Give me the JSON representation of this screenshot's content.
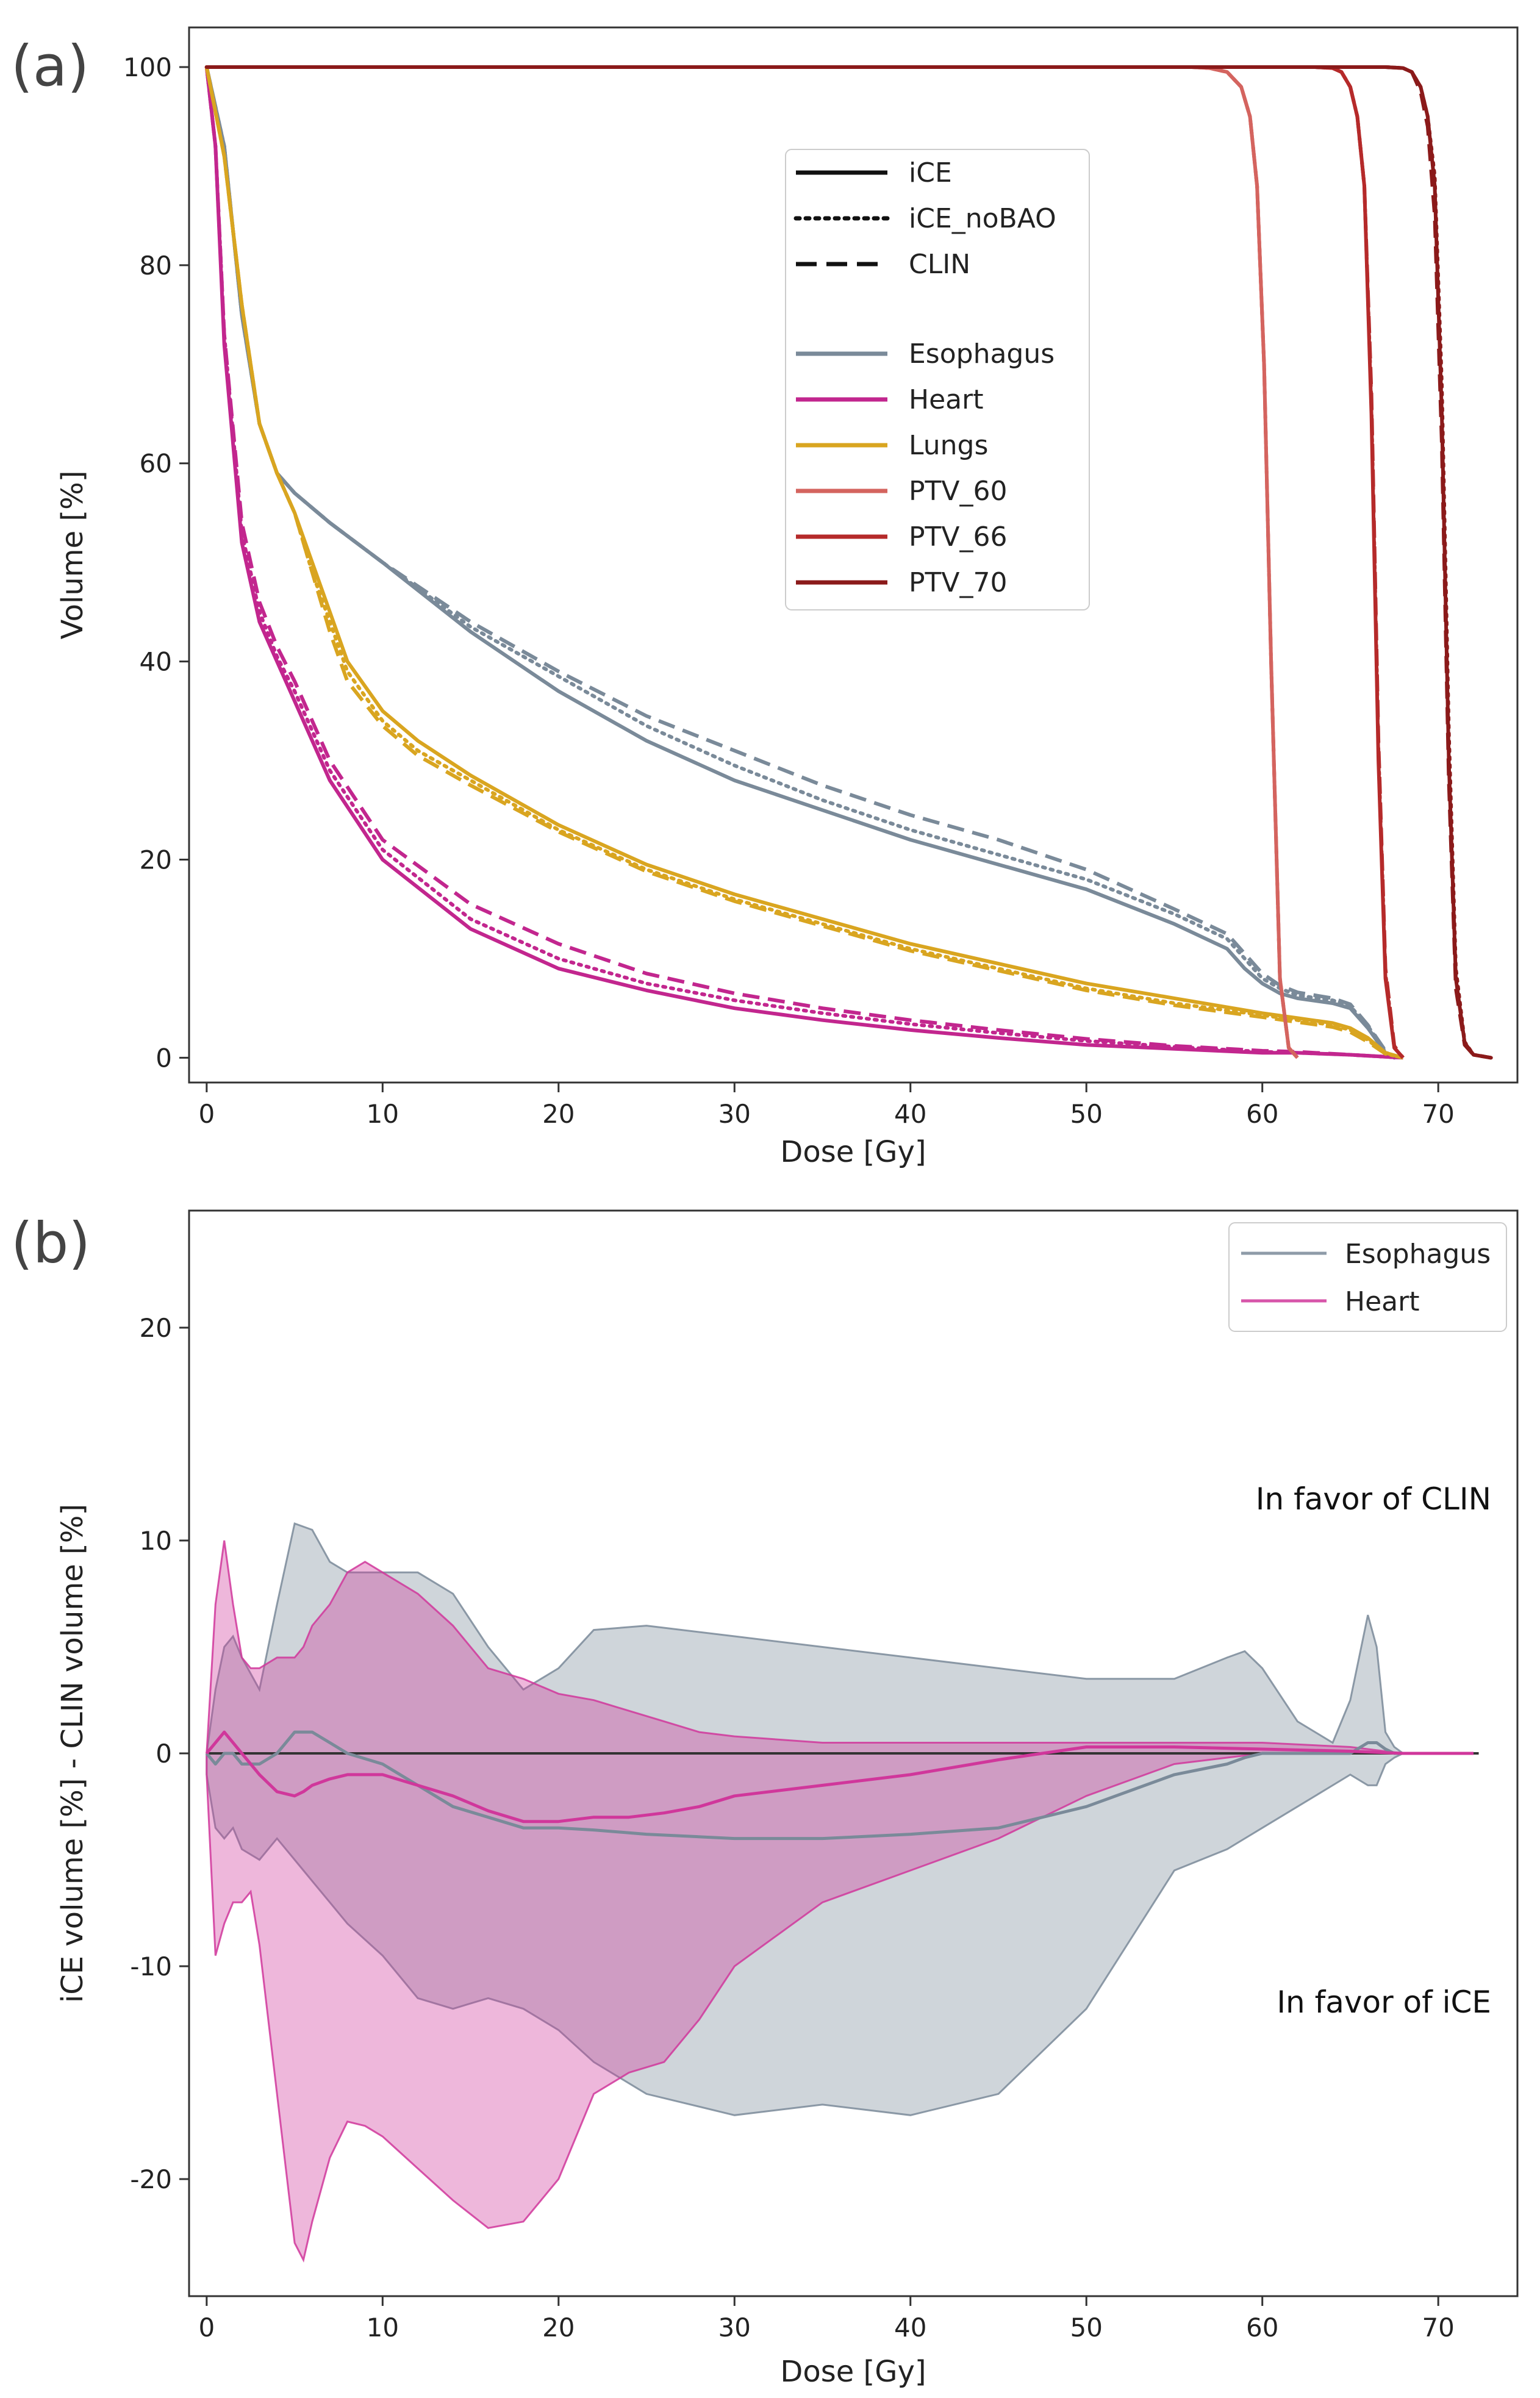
{
  "chart_data": [
    {
      "panel": "(a)",
      "type": "line",
      "xlabel": "Dose [Gy]",
      "ylabel": "Volume [%]",
      "xlim": [
        -1,
        74.5
      ],
      "ylim": [
        -2.5,
        104
      ],
      "xticks": [
        0,
        10,
        20,
        30,
        40,
        50,
        60,
        70
      ],
      "yticks": [
        0,
        20,
        40,
        60,
        80,
        100
      ],
      "legend_styles": [
        {
          "name": "iCE",
          "dash": "solid"
        },
        {
          "name": "iCE_noBAO",
          "dash": "dotted"
        },
        {
          "name": "CLIN",
          "dash": "dashed"
        }
      ],
      "series": [
        {
          "name": "Esophagus",
          "color": "#7a8a99",
          "x": [
            0,
            1,
            2,
            3,
            4,
            5,
            7,
            10,
            15,
            20,
            25,
            30,
            35,
            40,
            45,
            50,
            55,
            58,
            59,
            60,
            61,
            62,
            64,
            65,
            66,
            67,
            67.5
          ],
          "variants": {
            "iCE": [
              100,
              92,
              75,
              64,
              59,
              57,
              54,
              50,
              43,
              37,
              32,
              28,
              25,
              22,
              19.5,
              17,
              13.5,
              11,
              9,
              7.5,
              6.5,
              6,
              5.5,
              5,
              3,
              0.5,
              0
            ],
            "iCE_noBAO": [
              100,
              92,
              75,
              64,
              59,
              57,
              54,
              50,
              43.5,
              38.5,
              33.5,
              29.5,
              26,
              23,
              20.5,
              18,
              14.5,
              12,
              10,
              8,
              7,
              6.3,
              5.8,
              5.2,
              3.2,
              0.6,
              0
            ],
            "CLIN": [
              100,
              92,
              75,
              64,
              59,
              57,
              54,
              50,
              44,
              39,
              34.5,
              31,
              27.5,
              24.5,
              22,
              19,
              15,
              12.5,
              10.5,
              8.5,
              7.3,
              6.6,
              6,
              5.4,
              3.3,
              0.7,
              0
            ]
          }
        },
        {
          "name": "Heart",
          "color": "#c2268e",
          "x": [
            0,
            0.5,
            1,
            2,
            3,
            4,
            5,
            7,
            10,
            15,
            20,
            25,
            30,
            35,
            40,
            45,
            50,
            55,
            60,
            62,
            65,
            67,
            68
          ],
          "variants": {
            "iCE": [
              100,
              92,
              72,
              52,
              44,
              40,
              36,
              28,
              20,
              13,
              9,
              6.8,
              5,
              3.8,
              2.8,
              2,
              1.3,
              0.9,
              0.5,
              0.5,
              0.3,
              0.1,
              0
            ],
            "iCE_noBAO": [
              100,
              92,
              73,
              53,
              45,
              40.5,
              37,
              29,
              21,
              14,
              10,
              7.5,
              5.8,
              4.5,
              3.4,
              2.5,
              1.7,
              1.1,
              0.6,
              0.5,
              0.3,
              0.1,
              0
            ],
            "CLIN": [
              100,
              92,
              73,
              54,
              46,
              41.5,
              38,
              30,
              22,
              15.5,
              11.5,
              8.5,
              6.5,
              5,
              3.8,
              2.8,
              1.9,
              1.2,
              0.7,
              0.6,
              0.3,
              0.1,
              0
            ]
          }
        },
        {
          "name": "Lungs",
          "color": "#d9a520",
          "x": [
            0,
            1,
            2,
            3,
            4,
            5,
            6,
            7,
            8,
            10,
            12,
            15,
            20,
            25,
            30,
            35,
            40,
            45,
            50,
            55,
            60,
            62,
            64,
            65,
            66,
            67,
            68
          ],
          "variants": {
            "iCE": [
              100,
              91,
              76,
              64,
              59,
              55,
              50,
              45,
              40,
              35,
              32,
              28.5,
              23.5,
              19.5,
              16.5,
              14,
              11.5,
              9.5,
              7.5,
              6,
              4.5,
              4,
              3.5,
              3,
              2,
              0.5,
              0
            ],
            "iCE_noBAO": [
              100,
              91,
              76,
              64,
              59,
              55,
              49,
              44,
              39,
              34,
              31,
              28,
              23,
              19,
              16,
              13.5,
              11,
              9,
              7,
              5.5,
              4.3,
              3.8,
              3.3,
              2.8,
              1.8,
              0.4,
              0
            ],
            "CLIN": [
              100,
              91,
              76,
              64,
              59,
              55,
              49,
              43,
              38,
              33.5,
              30.5,
              27.5,
              22.8,
              18.8,
              15.8,
              13.3,
              10.8,
              8.8,
              6.8,
              5.3,
              4.1,
              3.6,
              3.1,
              2.6,
              1.6,
              0.4,
              0
            ]
          }
        },
        {
          "name": "PTV_60",
          "color": "#d4645f",
          "x": [
            0,
            56,
            57,
            58,
            58.8,
            59.3,
            59.7,
            60.1,
            60.5,
            61,
            61.5,
            62
          ],
          "variants": {
            "iCE": [
              100,
              100,
              99.9,
              99.5,
              98,
              95,
              88,
              70,
              40,
              8,
              1,
              0
            ],
            "iCE_noBAO": [
              100,
              100,
              99.9,
              99.5,
              98,
              95,
              88,
              70,
              40,
              8,
              1,
              0
            ],
            "CLIN": [
              100,
              100,
              99.9,
              99.5,
              98,
              95,
              88,
              70,
              40,
              8,
              1,
              0
            ]
          }
        },
        {
          "name": "PTV_66",
          "color": "#b52a2a",
          "x": [
            0,
            63,
            64,
            64.5,
            65,
            65.4,
            65.8,
            66.2,
            66.6,
            67,
            67.5,
            68
          ],
          "variants": {
            "iCE": [
              100,
              100,
              99.9,
              99.5,
              98,
              95,
              88,
              65,
              30,
              8,
              1,
              0
            ],
            "iCE_noBAO": [
              100,
              100,
              99.9,
              99.5,
              98,
              95,
              88,
              66,
              31,
              8.5,
              1,
              0
            ],
            "CLIN": [
              100,
              100,
              99.9,
              99.5,
              98,
              95,
              88,
              67,
              32,
              9,
              1.2,
              0
            ]
          }
        },
        {
          "name": "PTV_70",
          "color": "#8b1a1a",
          "x": [
            0,
            67,
            68,
            68.5,
            69,
            69.4,
            69.8,
            70.2,
            70.6,
            71,
            71.5,
            72,
            73
          ],
          "variants": {
            "iCE": [
              100,
              100,
              99.9,
              99.5,
              98,
              95,
              88,
              65,
              30,
              8,
              1.5,
              0.3,
              0
            ],
            "iCE_noBAO": [
              100,
              100,
              99.9,
              99.5,
              98,
              95,
              89,
              68,
              33,
              9,
              1.6,
              0.3,
              0
            ],
            "CLIN": [
              100,
              100,
              99.9,
              99.5,
              97.5,
              94,
              85,
              62,
              28,
              7,
              1.3,
              0.3,
              0
            ]
          }
        }
      ]
    },
    {
      "panel": "(b)",
      "type": "area",
      "xlabel": "Dose [Gy]",
      "ylabel": "iCE volume [%] - CLIN volume [%]",
      "xlim": [
        -1,
        74.5
      ],
      "ylim": [
        -25.5,
        25.5
      ],
      "xticks": [
        0,
        10,
        20,
        30,
        40,
        50,
        60,
        70
      ],
      "yticks": [
        -20,
        -10,
        0,
        10,
        20
      ],
      "zero_line": true,
      "annotations": [
        "In favor of CLIN",
        "In favor of iCE"
      ],
      "series": [
        {
          "name": "Esophagus",
          "color": "#7a8a99",
          "x": [
            0,
            0.5,
            1,
            1.5,
            2,
            3,
            4,
            5,
            6,
            7,
            8,
            10,
            12,
            14,
            16,
            18,
            20,
            22,
            25,
            30,
            35,
            40,
            45,
            50,
            55,
            58,
            59,
            60,
            62,
            64,
            65,
            66,
            66.5,
            67,
            67.5,
            68,
            72
          ],
          "upper": [
            0,
            3,
            5,
            5.5,
            4.5,
            3,
            7,
            10.8,
            10.5,
            9,
            8.5,
            8.5,
            8.5,
            7.5,
            5,
            3,
            4,
            5.8,
            6,
            5.5,
            5,
            4.5,
            4,
            3.5,
            3.5,
            4.5,
            4.8,
            4,
            1.5,
            0.5,
            2.5,
            6.5,
            5,
            1,
            0.3,
            0,
            0
          ],
          "mean": [
            0,
            -0.5,
            0,
            0,
            -0.5,
            -0.5,
            0,
            1,
            1,
            0.5,
            0,
            -0.5,
            -1.5,
            -2.5,
            -3,
            -3.5,
            -3.5,
            -3.6,
            -3.8,
            -4,
            -4,
            -3.8,
            -3.5,
            -2.5,
            -1,
            -0.5,
            -0.2,
            0,
            0,
            0,
            0,
            0.5,
            0.5,
            0.2,
            0,
            0,
            0
          ],
          "lower": [
            -1,
            -3.5,
            -4,
            -3.5,
            -4.5,
            -5,
            -4,
            -5,
            -6,
            -7,
            -8,
            -9.5,
            -11.5,
            -12,
            -11.5,
            -12,
            -13,
            -14.5,
            -16,
            -17,
            -16.5,
            -17,
            -16,
            -12,
            -5.5,
            -4.5,
            -4,
            -3.5,
            -2.5,
            -1.5,
            -1,
            -1.5,
            -1.5,
            -0.5,
            -0.2,
            0,
            0
          ]
        },
        {
          "name": "Heart",
          "color": "#d0379b",
          "x": [
            0,
            0.5,
            1,
            1.5,
            2,
            2.5,
            3,
            4,
            5,
            5.5,
            6,
            7,
            8,
            9,
            10,
            12,
            14,
            16,
            18,
            20,
            22,
            24,
            26,
            28,
            30,
            35,
            40,
            45,
            50,
            55,
            60,
            65,
            68,
            72
          ],
          "upper": [
            0,
            7,
            10,
            7,
            4.5,
            4,
            4,
            4.5,
            4.5,
            5,
            6,
            7,
            8.5,
            9,
            8.5,
            7.5,
            6,
            4,
            3.5,
            2.8,
            2.5,
            2,
            1.5,
            1,
            0.8,
            0.5,
            0.5,
            0.5,
            0.5,
            0.5,
            0.5,
            0.3,
            0,
            0
          ],
          "mean": [
            0,
            0.5,
            1,
            0.5,
            0,
            -0.5,
            -1,
            -1.8,
            -2,
            -1.8,
            -1.5,
            -1.2,
            -1,
            -1,
            -1,
            -1.5,
            -2,
            -2.7,
            -3.2,
            -3.2,
            -3,
            -3,
            -2.8,
            -2.5,
            -2,
            -1.5,
            -1,
            -0.3,
            0.3,
            0.3,
            0.2,
            0.1,
            0,
            0
          ],
          "lower": [
            -1,
            -9.5,
            -8,
            -7,
            -7,
            -6.5,
            -9,
            -16,
            -23,
            -23.8,
            -22,
            -19,
            -17.3,
            -17.5,
            -18,
            -19.5,
            -21,
            -22.3,
            -22,
            -20,
            -16,
            -15,
            -14.5,
            -12.5,
            -10,
            -7,
            -5.5,
            -4,
            -2,
            -0.5,
            0,
            0,
            0,
            0
          ]
        }
      ]
    }
  ]
}
